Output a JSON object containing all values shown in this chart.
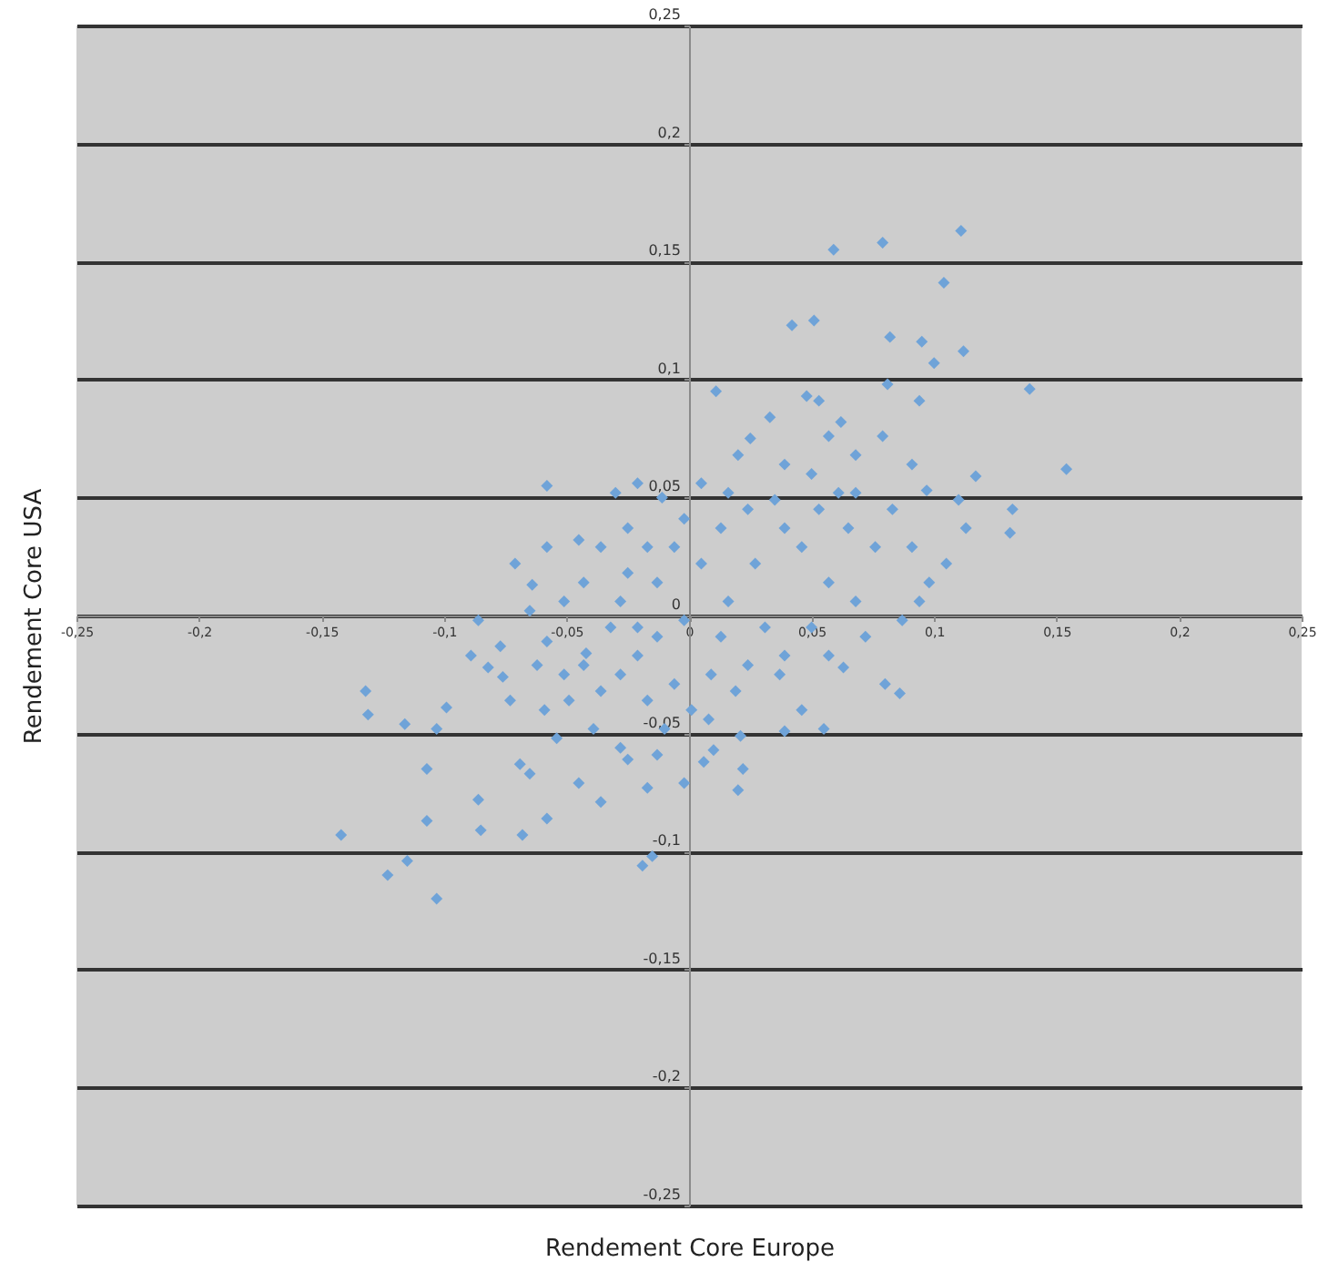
{
  "chart_data": {
    "type": "scatter",
    "xlabel": "Rendement Core Europe",
    "ylabel": "Rendement Core USA",
    "xlim": [
      -0.25,
      0.25
    ],
    "ylim": [
      -0.25,
      0.25
    ],
    "xticks": [
      {
        "value": -0.25,
        "label": "-0,25"
      },
      {
        "value": -0.2,
        "label": "-0,2"
      },
      {
        "value": -0.15,
        "label": "-0,15"
      },
      {
        "value": -0.1,
        "label": "-0,1"
      },
      {
        "value": -0.05,
        "label": "-0,05"
      },
      {
        "value": 0,
        "label": "0"
      },
      {
        "value": 0.05,
        "label": "0,05"
      },
      {
        "value": 0.1,
        "label": "0,1"
      },
      {
        "value": 0.15,
        "label": "0,15"
      },
      {
        "value": 0.2,
        "label": "0,2"
      },
      {
        "value": 0.25,
        "label": "0,25"
      }
    ],
    "yticks": [
      {
        "value": -0.25,
        "label": "-0,25"
      },
      {
        "value": -0.2,
        "label": "-0,2"
      },
      {
        "value": -0.15,
        "label": "-0,15"
      },
      {
        "value": -0.1,
        "label": "-0,1"
      },
      {
        "value": -0.05,
        "label": "-0,05"
      },
      {
        "value": 0,
        "label": "0"
      },
      {
        "value": 0.05,
        "label": "0,05"
      },
      {
        "value": 0.1,
        "label": "0,1"
      },
      {
        "value": 0.15,
        "label": "0,15"
      },
      {
        "value": 0.2,
        "label": "0,2"
      },
      {
        "value": 0.25,
        "label": "0,25"
      }
    ],
    "grid": "y",
    "marker": "diamond",
    "series": [
      {
        "color": "#6fa3d8",
        "x": [
          0.111,
          0.079,
          0.059,
          0.104,
          0.042,
          0.051,
          0.082,
          0.139,
          0.095,
          0.112,
          0.1,
          0.081,
          0.048,
          0.011,
          0.094,
          0.154,
          0.11,
          0.132,
          0.131,
          -0.058,
          0.097,
          0.057,
          0.025,
          0.033,
          0.068,
          0.117,
          -0.142,
          -0.123,
          -0.115,
          -0.103,
          -0.132,
          -0.131,
          -0.116,
          -0.103,
          -0.107,
          -0.107,
          -0.086,
          -0.085,
          -0.068,
          -0.019,
          -0.015,
          -0.065,
          -0.058,
          -0.069,
          -0.099,
          -0.076,
          -0.077,
          -0.058,
          -0.042,
          -0.049,
          -0.054,
          -0.036,
          -0.025,
          -0.045,
          -0.017,
          0.02,
          0.022,
          0.021,
          0.039,
          0.055,
          0.08,
          0.086,
          0.063,
          0.037,
          0.019,
          0.008,
          0.01,
          0.006,
          0.001,
          -0.01,
          -0.071,
          -0.064,
          -0.058,
          -0.045,
          -0.03,
          -0.021,
          -0.011,
          -0.025,
          -0.036,
          -0.043,
          -0.051,
          -0.065,
          -0.086,
          -0.089,
          -0.082,
          -0.028,
          -0.021,
          -0.013,
          -0.006,
          -0.002,
          0.005,
          0.013,
          0.016,
          0.024,
          0.027,
          0.031,
          0.039,
          0.046,
          0.053,
          0.057,
          0.065,
          0.068,
          0.076,
          0.083,
          0.091,
          0.098,
          0.068,
          0.05,
          0.039,
          0.024,
          0.009,
          -0.006,
          -0.017,
          -0.028,
          -0.036,
          -0.021,
          -0.013,
          0.013,
          0.02,
          0.039,
          0.05,
          0.061,
          0.035,
          0.016,
          0.005,
          -0.002,
          -0.017,
          -0.025,
          -0.032,
          -0.043,
          -0.051,
          -0.062,
          -0.059,
          -0.073,
          -0.039,
          -0.028,
          -0.013,
          -0.002,
          0.046,
          0.057,
          0.072,
          0.087,
          0.094,
          0.105,
          0.113,
          0.091,
          0.079,
          0.062,
          0.053
        ],
        "values": [
          0.163,
          0.158,
          0.155,
          0.141,
          0.123,
          0.125,
          0.118,
          0.096,
          0.116,
          0.112,
          0.107,
          0.098,
          0.093,
          0.095,
          0.091,
          0.062,
          0.049,
          0.045,
          0.035,
          0.055,
          0.053,
          0.076,
          0.075,
          0.084,
          0.068,
          0.059,
          -0.093,
          -0.11,
          -0.104,
          -0.12,
          -0.032,
          -0.042,
          -0.046,
          -0.048,
          -0.065,
          -0.087,
          -0.078,
          -0.091,
          -0.093,
          -0.106,
          -0.102,
          -0.067,
          -0.086,
          -0.063,
          -0.039,
          -0.026,
          -0.013,
          -0.011,
          -0.016,
          -0.036,
          -0.052,
          -0.079,
          -0.061,
          -0.071,
          -0.073,
          -0.074,
          -0.065,
          -0.051,
          -0.049,
          -0.048,
          -0.029,
          -0.033,
          -0.022,
          -0.025,
          -0.032,
          -0.044,
          -0.057,
          -0.062,
          -0.04,
          -0.048,
          0.022,
          0.013,
          0.029,
          0.032,
          0.052,
          0.056,
          0.05,
          0.037,
          0.029,
          0.014,
          0.006,
          0.002,
          -0.002,
          -0.017,
          -0.022,
          0.006,
          -0.005,
          0.014,
          0.029,
          -0.002,
          0.022,
          0.037,
          0.006,
          0.045,
          0.022,
          -0.005,
          0.037,
          0.029,
          0.045,
          0.014,
          0.037,
          0.052,
          0.029,
          0.045,
          0.029,
          0.014,
          0.006,
          -0.005,
          -0.017,
          -0.021,
          -0.025,
          -0.029,
          -0.036,
          -0.025,
          -0.032,
          -0.017,
          -0.009,
          -0.009,
          0.068,
          0.064,
          0.06,
          0.052,
          0.049,
          0.052,
          0.056,
          0.041,
          0.029,
          0.018,
          -0.005,
          -0.021,
          -0.025,
          -0.021,
          -0.04,
          -0.036,
          -0.048,
          -0.056,
          -0.059,
          -0.071,
          -0.04,
          -0.017,
          -0.009,
          -0.002,
          0.006,
          0.022,
          0.037,
          0.064,
          0.076,
          0.082,
          0.091
        ]
      }
    ]
  }
}
